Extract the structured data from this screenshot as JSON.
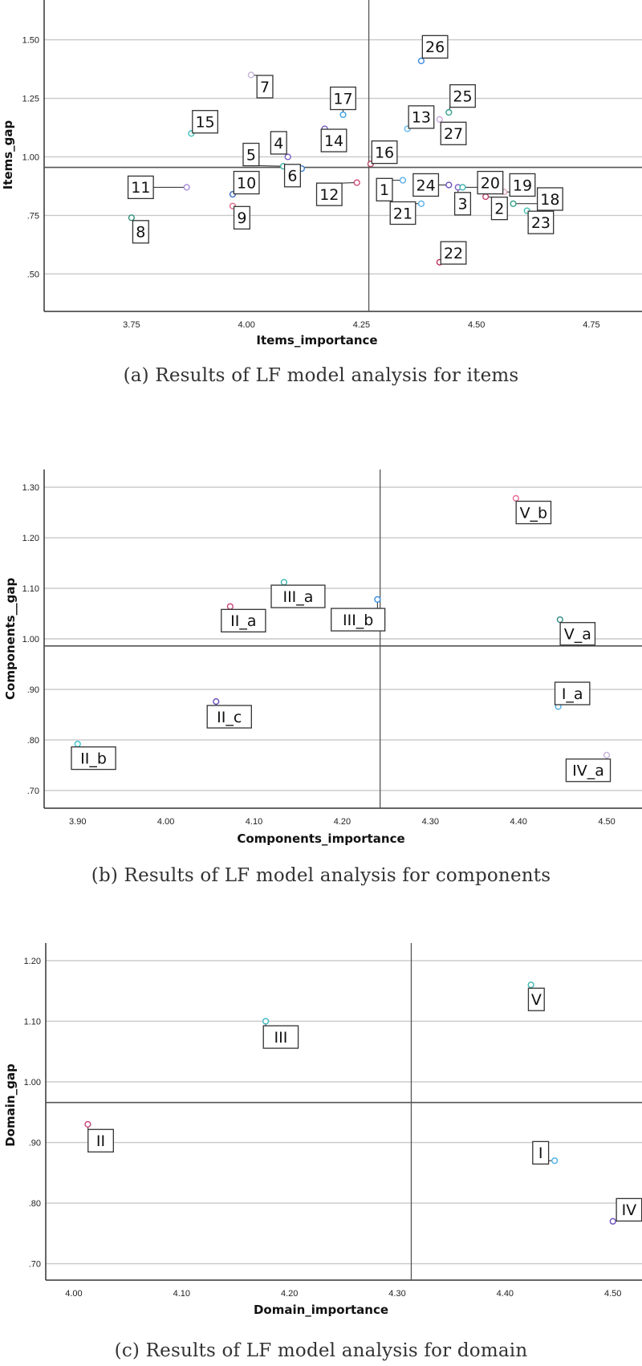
{
  "figure": {
    "captions": [
      "(a) Results of LF model analysis for items",
      "(b) Results of LF model analysis for components",
      "(c) Results of LF model analysis for domain"
    ]
  },
  "chart_data": [
    {
      "type": "scatter",
      "title": "(a) Results of LF model analysis for items",
      "xlabel": "Items_importance",
      "ylabel": "Items_gap",
      "xlim": [
        3.56,
        4.86
      ],
      "ylim": [
        0.34,
        1.67
      ],
      "xticks": [
        3.75,
        4.0,
        4.25,
        4.5,
        4.75
      ],
      "xtick_labels": [
        "3.75",
        "4.00",
        "4.25",
        "4.50",
        "4.75"
      ],
      "yticks": [
        0.5,
        0.75,
        1.0,
        1.25,
        1.5
      ],
      "ytick_labels": [
        ".50",
        ".75",
        "1.00",
        "1.25",
        "1.50"
      ],
      "grid": "horizontal",
      "reference_lines": {
        "x_mean": 4.266,
        "y_mean": 0.955
      },
      "points": [
        {
          "label": "1",
          "x": 4.34,
          "y": 0.9,
          "color": "#5aaee8",
          "lx": 4.3,
          "ly": 0.86
        },
        {
          "label": "2",
          "x": 4.52,
          "y": 0.83,
          "color": "#c0406a",
          "lx": 4.55,
          "ly": 0.78
        },
        {
          "label": "3",
          "x": 4.46,
          "y": 0.87,
          "color": "#7a5cc4",
          "lx": 4.47,
          "ly": 0.8
        },
        {
          "label": "4",
          "x": 4.09,
          "y": 1.0,
          "color": "#7a5cc4",
          "lx": 4.07,
          "ly": 1.06
        },
        {
          "label": "5",
          "x": 4.08,
          "y": 0.96,
          "color": "#3bb0a0",
          "lx": 4.01,
          "ly": 1.01
        },
        {
          "label": "6",
          "x": 4.12,
          "y": 0.95,
          "color": "#3a7ed0",
          "lx": 4.1,
          "ly": 0.92
        },
        {
          "label": "7",
          "x": 4.01,
          "y": 1.35,
          "color": "#c5b4d8",
          "lx": 4.04,
          "ly": 1.3
        },
        {
          "label": "8",
          "x": 3.75,
          "y": 0.74,
          "color": "#2f8f78",
          "lx": 3.77,
          "ly": 0.68
        },
        {
          "label": "9",
          "x": 3.97,
          "y": 0.79,
          "color": "#e06c8a",
          "lx": 3.99,
          "ly": 0.74
        },
        {
          "label": "10",
          "x": 3.97,
          "y": 0.84,
          "color": "#3a6bc0",
          "lx": 4.0,
          "ly": 0.89
        },
        {
          "label": "11",
          "x": 3.87,
          "y": 0.87,
          "color": "#a68ad8",
          "lx": 3.77,
          "ly": 0.87
        },
        {
          "label": "12",
          "x": 4.24,
          "y": 0.89,
          "color": "#d04a78",
          "lx": 4.18,
          "ly": 0.84
        },
        {
          "label": "13",
          "x": 4.35,
          "y": 1.12,
          "color": "#5ab8e8",
          "lx": 4.38,
          "ly": 1.17
        },
        {
          "label": "14",
          "x": 4.17,
          "y": 1.12,
          "color": "#7a5cc4",
          "lx": 4.19,
          "ly": 1.07
        },
        {
          "label": "15",
          "x": 3.88,
          "y": 1.1,
          "color": "#3bc0b8",
          "lx": 3.91,
          "ly": 1.15
        },
        {
          "label": "16",
          "x": 4.27,
          "y": 0.97,
          "color": "#b04060",
          "lx": 4.3,
          "ly": 1.02
        },
        {
          "label": "17",
          "x": 4.21,
          "y": 1.18,
          "color": "#3a9ee0",
          "lx": 4.21,
          "ly": 1.25
        },
        {
          "label": "18",
          "x": 4.58,
          "y": 0.8,
          "color": "#2fa088",
          "lx": 4.66,
          "ly": 0.82
        },
        {
          "label": "19",
          "x": 4.56,
          "y": 0.85,
          "color": "#e8a0b8",
          "lx": 4.6,
          "ly": 0.88
        },
        {
          "label": "20",
          "x": 4.47,
          "y": 0.87,
          "color": "#3bb8b0",
          "lx": 4.53,
          "ly": 0.89
        },
        {
          "label": "21",
          "x": 4.38,
          "y": 0.8,
          "color": "#5ab0e8",
          "lx": 4.34,
          "ly": 0.76
        },
        {
          "label": "22",
          "x": 4.42,
          "y": 0.55,
          "color": "#c0305a",
          "lx": 4.45,
          "ly": 0.59
        },
        {
          "label": "23",
          "x": 4.61,
          "y": 0.77,
          "color": "#3bc0b0",
          "lx": 4.64,
          "ly": 0.72
        },
        {
          "label": "24",
          "x": 4.44,
          "y": 0.88,
          "color": "#6a4cc0",
          "lx": 4.39,
          "ly": 0.88
        },
        {
          "label": "25",
          "x": 4.44,
          "y": 1.19,
          "color": "#2fa088",
          "lx": 4.47,
          "ly": 1.26
        },
        {
          "label": "26",
          "x": 4.38,
          "y": 1.41,
          "color": "#3a8ae0",
          "lx": 4.41,
          "ly": 1.47
        },
        {
          "label": "27",
          "x": 4.42,
          "y": 1.16,
          "color": "#c9a8e0",
          "lx": 4.45,
          "ly": 1.1
        }
      ]
    },
    {
      "type": "scatter",
      "title": "(b) Results of LF model analysis for components",
      "xlabel": "Components_importance",
      "ylabel": "Components__gap",
      "xlim": [
        3.862,
        4.54
      ],
      "ylim": [
        0.665,
        1.335
      ],
      "xticks": [
        3.9,
        4.0,
        4.1,
        4.2,
        4.3,
        4.4,
        4.5
      ],
      "xtick_labels": [
        "3.90",
        "4.00",
        "4.10",
        "4.20",
        "4.30",
        "4.40",
        "4.50"
      ],
      "yticks": [
        0.7,
        0.8,
        0.9,
        1.0,
        1.1,
        1.2,
        1.3
      ],
      "ytick_labels": [
        ".70",
        ".80",
        ".90",
        "1.00",
        "1.10",
        "1.20",
        "1.30"
      ],
      "grid": "horizontal",
      "reference_lines": {
        "x_mean": 4.243,
        "y_mean": 0.986
      },
      "points": [
        {
          "label": "I_a",
          "x": 4.445,
          "y": 0.866,
          "color": "#4aaee8",
          "lx": 4.461,
          "ly": 0.892
        },
        {
          "label": "II_a",
          "x": 4.073,
          "y": 1.064,
          "color": "#c9407a",
          "lx": 4.088,
          "ly": 1.036
        },
        {
          "label": "II_b",
          "x": 3.9,
          "y": 0.792,
          "color": "#3bc0c8",
          "lx": 3.918,
          "ly": 0.764
        },
        {
          "label": "II_c",
          "x": 4.057,
          "y": 0.876,
          "color": "#6a4cb8",
          "lx": 4.072,
          "ly": 0.846
        },
        {
          "label": "III_a",
          "x": 4.134,
          "y": 1.112,
          "color": "#3bb8b0",
          "lx": 4.15,
          "ly": 1.084
        },
        {
          "label": "III_b",
          "x": 4.24,
          "y": 1.078,
          "color": "#3a8ee0",
          "lx": 4.218,
          "ly": 1.038
        },
        {
          "label": "IV_a",
          "x": 4.5,
          "y": 0.77,
          "color": "#c8b0d8",
          "lx": 4.479,
          "ly": 0.74
        },
        {
          "label": "V_a",
          "x": 4.447,
          "y": 1.038,
          "color": "#2f8f88",
          "lx": 4.467,
          "ly": 1.01
        },
        {
          "label": "V_b",
          "x": 4.397,
          "y": 1.278,
          "color": "#e86c98",
          "lx": 4.417,
          "ly": 1.25
        }
      ]
    },
    {
      "type": "scatter",
      "title": "(c) Results of LF model analysis for domain",
      "xlabel": "Domain_importance",
      "ylabel": "Domain_gap",
      "xlim": [
        3.974,
        4.527
      ],
      "ylim": [
        0.673,
        1.229
      ],
      "xticks": [
        4.0,
        4.1,
        4.2,
        4.3,
        4.4,
        4.5
      ],
      "xtick_labels": [
        "4.00",
        "4.10",
        "4.20",
        "4.30",
        "4.40",
        "4.50"
      ],
      "yticks": [
        0.7,
        0.8,
        0.9,
        1.0,
        1.1,
        1.2
      ],
      "ytick_labels": [
        ".70",
        ".80",
        ".90",
        "1.00",
        "1.10",
        "1.20"
      ],
      "grid": "horizontal",
      "reference_lines": {
        "x_mean": 4.313,
        "y_mean": 0.966
      },
      "points": [
        {
          "label": "I",
          "x": 4.446,
          "y": 0.87,
          "color": "#4aaee8",
          "lx": 4.433,
          "ly": 0.883
        },
        {
          "label": "II",
          "x": 4.013,
          "y": 0.93,
          "color": "#c9407a",
          "lx": 4.025,
          "ly": 0.903
        },
        {
          "label": "III",
          "x": 4.178,
          "y": 1.1,
          "color": "#3bb8c0",
          "lx": 4.192,
          "ly": 1.074
        },
        {
          "label": "IV",
          "x": 4.5,
          "y": 0.77,
          "color": "#6a4cc0",
          "lx": 4.515,
          "ly": 0.789
        },
        {
          "label": "V",
          "x": 4.424,
          "y": 1.16,
          "color": "#3bb8b0",
          "lx": 4.429,
          "ly": 1.136
        }
      ]
    }
  ]
}
